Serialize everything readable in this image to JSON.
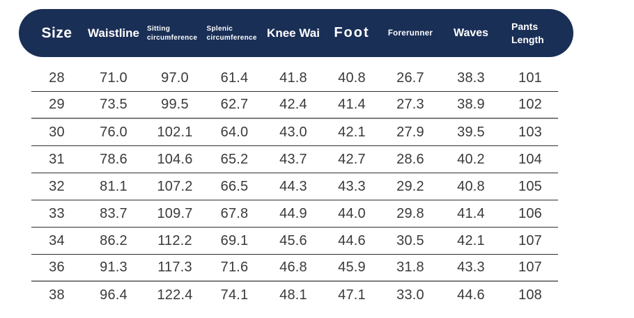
{
  "colors": {
    "header_bg": "#1A2F56",
    "header_text": "#ffffff",
    "body_text": "#3a3a3a",
    "divider_thin": "#2e2e2e",
    "divider_thick": "#7d7d7d",
    "background": "#ffffff"
  },
  "chart_data": {
    "type": "table",
    "columns": [
      "Size",
      "Waistline",
      "Sitting circumference",
      "Splenic circumference",
      "Knee Wai",
      "Foot",
      "Forerunner",
      "Waves",
      "Pants Length"
    ],
    "rows": [
      [
        "28",
        "71.0",
        "97.0",
        "61.4",
        "41.8",
        "40.8",
        "26.7",
        "38.3",
        "101"
      ],
      [
        "29",
        "73.5",
        "99.5",
        "62.7",
        "42.4",
        "41.4",
        "27.3",
        "38.9",
        "102"
      ],
      [
        "30",
        "76.0",
        "102.1",
        "64.0",
        "43.0",
        "42.1",
        "27.9",
        "39.5",
        "103"
      ],
      [
        "31",
        "78.6",
        "104.6",
        "65.2",
        "43.7",
        "42.7",
        "28.6",
        "40.2",
        "104"
      ],
      [
        "32",
        "81.1",
        "107.2",
        "66.5",
        "44.3",
        "43.3",
        "29.2",
        "40.8",
        "105"
      ],
      [
        "33",
        "83.7",
        "109.7",
        "67.8",
        "44.9",
        "44.0",
        "29.8",
        "41.4",
        "106"
      ],
      [
        "34",
        "86.2",
        "112.2",
        "69.1",
        "45.6",
        "44.6",
        "30.5",
        "42.1",
        "107"
      ],
      [
        "36",
        "91.3",
        "117.3",
        "71.6",
        "46.8",
        "45.9",
        "31.8",
        "43.3",
        "107"
      ],
      [
        "38",
        "96.4",
        "122.4",
        "74.1",
        "48.1",
        "47.1",
        "33.0",
        "44.6",
        "108"
      ]
    ]
  }
}
